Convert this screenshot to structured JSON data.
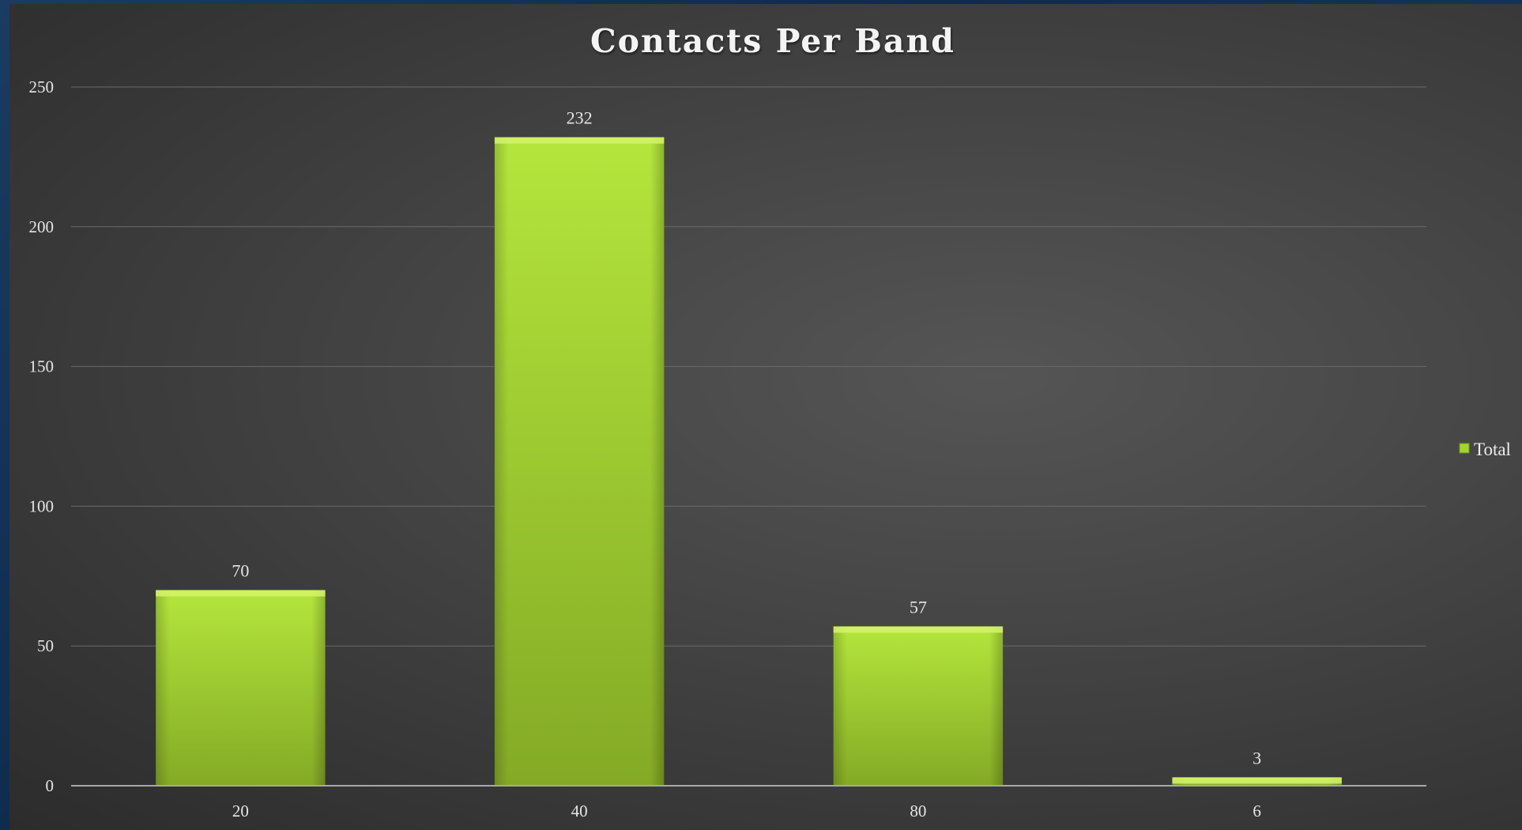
{
  "chart_data": {
    "type": "bar",
    "title": "Contacts Per Band",
    "xlabel": "",
    "ylabel": "",
    "categories": [
      "20",
      "40",
      "80",
      "6"
    ],
    "series": [
      {
        "name": "Total",
        "values": [
          70,
          232,
          57,
          3
        ]
      }
    ],
    "ylim": [
      0,
      250
    ],
    "yticks": [
      0,
      50,
      100,
      150,
      200,
      250
    ],
    "grid": true,
    "legend": "right",
    "data_labels": true,
    "colors": {
      "bar_light": "#b2e53a",
      "bar_dark": "#86ad26",
      "bar_top": "#d3f36a",
      "gridline": "#6a6a6a",
      "axis": "#a8a8a8"
    }
  }
}
